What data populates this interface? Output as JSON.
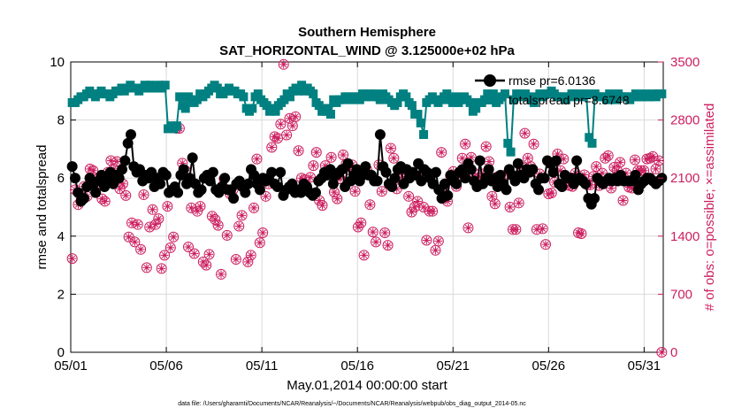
{
  "chart_data": {
    "type": "line",
    "title": [
      "Southern Hemisphere",
      "SAT_HORIZONTAL_WIND @ 3.125000e+02 hPa"
    ],
    "xlabel": "May.01,2014 00:00:00 start",
    "ylabel": "rmse and totalspread",
    "y2label": "# of obs: o=possible; ×=assimilated",
    "footnote": "data file: /Users/gharamti/Documents/NCAR/Reanalysis/~/Documents/NCAR/Reanalysis/webpub/obs_diag_output_2014-05.nc",
    "x_ticks": [
      "05/01",
      "05/06",
      "05/11",
      "05/16",
      "05/21",
      "05/26",
      "05/31"
    ],
    "xlim_days": [
      1,
      32
    ],
    "ylim": [
      0,
      10
    ],
    "y_ticks": [
      "0",
      "2",
      "4",
      "6",
      "8",
      "10"
    ],
    "y2lim": [
      0,
      3500
    ],
    "y2_ticks": [
      "0",
      "700",
      "1400",
      "2100",
      "2800",
      "3500"
    ],
    "grid": true,
    "legend_position": "top-right",
    "colors": {
      "rmse": "#000000",
      "totalspread": "#008080",
      "obs": "#cc1f5f"
    },
    "series": [
      {
        "name": "rmse pr=6.0136",
        "axis": "left",
        "marker": "circle",
        "values": [
          6.4,
          6.0,
          5.5,
          5.2,
          5.3,
          5.7,
          6.0,
          5.8,
          5.5,
          5.9,
          6.1,
          5.7,
          6.0,
          6.2,
          5.8,
          6.1,
          6.0,
          6.3,
          6.6,
          7.2,
          7.5,
          6.4,
          6.2,
          6.3,
          5.9,
          6.1,
          6.0,
          6.2,
          5.7,
          6.0,
          5.8,
          6.2,
          6.1,
          5.5,
          5.6,
          5.7,
          5.5,
          6.1,
          6.3,
          5.8,
          6.0,
          6.7,
          5.8,
          5.5,
          5.6,
          6.0,
          6.1,
          5.9,
          6.2,
          5.6,
          5.5,
          5.7,
          6.0,
          5.6,
          5.6,
          5.3,
          5.8,
          5.9,
          5.7,
          5.5,
          5.8,
          6.3,
          6.1,
          5.8,
          5.6,
          6.0,
          5.9,
          6.0,
          6.2,
          5.8,
          5.7,
          6.2,
          5.4,
          5.6,
          5.7,
          5.8,
          5.5,
          5.6,
          5.5,
          5.8,
          5.7,
          5.5,
          5.4,
          5.5,
          5.9,
          6.0,
          6.2,
          6.1,
          6.3,
          5.8,
          6.1,
          6.2,
          6.3,
          5.7,
          6.5,
          5.9,
          6.1,
          6.3,
          5.9,
          6.1,
          6.4,
          6.1,
          6.1,
          5.9,
          5.9,
          7.5,
          6.4,
          6.2,
          5.8,
          5.7,
          6.0,
          6.3,
          6.4,
          5.8,
          6.3,
          6.0,
          6.2,
          6.1,
          6.5,
          5.9,
          6.3,
          6.2,
          6.0,
          5.8,
          6.2,
          5.6,
          5.3,
          5.8,
          5.4,
          6.1,
          5.9,
          5.8,
          6.2,
          6.3,
          6.0,
          6.5,
          6.3,
          5.9,
          5.7,
          6.6,
          5.8,
          6.0,
          6.3,
          5.9,
          6.0,
          5.7,
          6.1,
          5.8,
          5.6,
          6.3,
          6.1,
          5.9,
          6.5,
          6.1,
          6.0,
          6.3,
          6.2,
          6.3,
          5.8,
          5.6,
          6.0,
          6.0,
          6.6,
          6.5,
          6.2,
          6.6,
          5.8,
          5.7,
          6.1,
          6.0,
          6.0,
          5.8,
          6.6,
          6.0,
          5.9,
          5.8,
          5.3,
          5.1,
          5.3,
          6.0,
          5.9,
          5.8,
          5.9,
          6.0,
          5.9,
          6.0,
          5.9,
          6.1,
          5.9,
          5.9,
          5.9,
          5.9,
          6.1,
          5.6,
          5.8,
          5.9,
          6.0,
          6.0,
          5.9,
          5.8,
          5.9,
          6.0
        ]
      },
      {
        "name": "totalspread pr=8.6748",
        "axis": "left",
        "marker": "square",
        "values": [
          8.6,
          8.6,
          8.7,
          8.8,
          8.8,
          8.9,
          9.0,
          8.9,
          8.8,
          8.9,
          9.0,
          8.9,
          8.9,
          8.8,
          8.9,
          9.0,
          9.0,
          9.1,
          9.0,
          9.1,
          9.2,
          9.1,
          9.1,
          9.0,
          9.1,
          9.2,
          9.1,
          9.2,
          9.1,
          9.1,
          9.2,
          9.1,
          9.2,
          7.7,
          7.8,
          7.7,
          7.8,
          8.8,
          8.5,
          8.4,
          8.8,
          8.7,
          8.6,
          8.7,
          8.9,
          8.8,
          8.9,
          9.0,
          9.1,
          9.2,
          9.1,
          8.9,
          8.9,
          9.0,
          9.1,
          9.0,
          9.0,
          8.9,
          8.9,
          8.8,
          8.4,
          8.3,
          8.4,
          8.8,
          8.9,
          8.7,
          8.6,
          8.5,
          8.3,
          8.4,
          8.3,
          8.5,
          8.6,
          8.7,
          8.9,
          8.8,
          9.0,
          9.1,
          9.0,
          9.2,
          9.0,
          9.1,
          9.0,
          8.9,
          8.6,
          8.5,
          8.3,
          8.3,
          8.4,
          8.2,
          8.7,
          8.6,
          8.7,
          8.7,
          8.8,
          8.8,
          8.7,
          8.8,
          8.8,
          8.7,
          8.9,
          8.8,
          8.9,
          8.8,
          8.9,
          8.8,
          8.7,
          8.9,
          8.8,
          8.7,
          8.6,
          8.5,
          8.6,
          8.8,
          8.9,
          8.8,
          8.6,
          8.5,
          8.2,
          8.2,
          7.9,
          7.5,
          8.6,
          8.7,
          8.8,
          8.7,
          8.6,
          8.7,
          8.8,
          8.9,
          8.7,
          8.6,
          8.8,
          8.6,
          8.7,
          8.8,
          8.7,
          8.6,
          8.3,
          8.4,
          8.6,
          8.6,
          8.7,
          8.9,
          8.8,
          8.9,
          8.6,
          8.7,
          8.8,
          8.9,
          7.2,
          6.9,
          8.7,
          8.9,
          8.9,
          8.8,
          8.9,
          8.8,
          8.7,
          8.6,
          8.8,
          8.9,
          8.8,
          8.9,
          8.9,
          9.0,
          8.9,
          8.8,
          8.8,
          8.8,
          8.7,
          8.8,
          8.9,
          8.9,
          8.8,
          8.9,
          8.8,
          8.9,
          7.4,
          7.2,
          8.9,
          8.8,
          8.8,
          8.8,
          8.7,
          8.9,
          8.8,
          8.7,
          8.9,
          8.8,
          8.8,
          8.8,
          8.7,
          8.8,
          8.9,
          8.8,
          8.8,
          8.9,
          8.8,
          8.8,
          8.9,
          8.8,
          8.9,
          8.9
        ]
      },
      {
        "name": "",
        "axis": "right",
        "marker": "circle-open",
        "values": [
          1130,
          1960,
          1780,
          1850,
          2000,
          1880,
          2210,
          2190,
          2100,
          2040,
          1850,
          1820,
          2170,
          2310,
          2210,
          2300,
          1970,
          2030,
          1890,
          1390,
          1560,
          1330,
          1540,
          1240,
          1900,
          1020,
          1510,
          1720,
          1540,
          1610,
          1010,
          1170,
          1760,
          1260,
          1390,
          2700,
          2700,
          2280,
          2190,
          1270,
          1740,
          1190,
          1700,
          1760,
          1090,
          1050,
          1180,
          1640,
          1600,
          1530,
          940,
          2090,
          1410,
          1910,
          1960,
          1120,
          1520,
          1650,
          2020,
          1090,
          1170,
          1740,
          2330,
          1320,
          1440,
          1880,
          2030,
          2470,
          2600,
          2580,
          2750,
          3470,
          2620,
          2820,
          2730,
          2840,
          2430,
          2100,
          2080,
          1950,
          2110,
          2250,
          2410,
          1830,
          1770,
          2250,
          2180,
          2350,
          1930,
          1850,
          2090,
          2380,
          2270,
          2200,
          2260,
          1940,
          1510,
          1560,
          1170,
          2200,
          1780,
          1450,
          1330,
          2260,
          1940,
          1440,
          1290,
          2460,
          2340,
          1970,
          2200,
          2060,
          2120,
          1880,
          1690,
          1750,
          1820,
          2130,
          1750,
          1350,
          1700,
          1700,
          1230,
          1340,
          2410,
          1920,
          1820,
          2130,
          2180,
          2000,
          2150,
          2340,
          2510,
          1500,
          2350,
          2160,
          2080,
          2110,
          2150,
          2480,
          2300,
          1880,
          1790,
          2120,
          2070,
          2000,
          2150,
          1750,
          1480,
          1480,
          1800,
          2230,
          2640,
          2340,
          2240,
          2510,
          1480,
          2150,
          1490,
          1300,
          1910,
          1920,
          2050,
          2390,
          2190,
          2330,
          2060,
          2010,
          2000,
          2160,
          1440,
          1430,
          2140,
          2020,
          2020,
          2120,
          2240,
          2010,
          2160,
          2340,
          2370,
          1980,
          2230,
          2190,
          2290,
          1830,
          2160,
          1990,
          1980,
          2320,
          2190,
          2190,
          2190,
          2330,
          2340,
          2360,
          2210,
          2310,
          0
        ]
      },
      {
        "name": "",
        "axis": "right",
        "marker": "asterisk",
        "values": [
          1130,
          1960,
          1780,
          1850,
          2000,
          1880,
          2210,
          2190,
          2100,
          2040,
          1850,
          1820,
          2170,
          2310,
          2210,
          2300,
          1970,
          2030,
          1890,
          1390,
          1560,
          1330,
          1540,
          1240,
          1900,
          1020,
          1510,
          1720,
          1540,
          1610,
          1010,
          1170,
          1760,
          1260,
          1390,
          2700,
          2700,
          2280,
          2190,
          1270,
          1740,
          1190,
          1700,
          1760,
          1090,
          1050,
          1180,
          1640,
          1600,
          1530,
          940,
          2090,
          1410,
          1910,
          1960,
          1120,
          1520,
          1650,
          2020,
          1090,
          1170,
          1740,
          2330,
          1320,
          1440,
          1880,
          2030,
          2470,
          2600,
          2580,
          2750,
          3470,
          2620,
          2820,
          2730,
          2840,
          2430,
          2100,
          2080,
          1950,
          2110,
          2250,
          2410,
          1830,
          1770,
          2250,
          2180,
          2350,
          1930,
          1850,
          2090,
          2380,
          2270,
          2200,
          2260,
          1940,
          1510,
          1560,
          1170,
          2200,
          1780,
          1450,
          1330,
          2260,
          1940,
          1440,
          1290,
          2460,
          2340,
          1970,
          2200,
          2060,
          2120,
          1880,
          1690,
          1750,
          1820,
          2130,
          1750,
          1350,
          1700,
          1700,
          1230,
          1340,
          2410,
          1920,
          1820,
          2130,
          2180,
          2000,
          2150,
          2340,
          2510,
          1500,
          2350,
          2160,
          2080,
          2110,
          2150,
          2480,
          2300,
          1880,
          1790,
          2120,
          2070,
          2000,
          2150,
          1750,
          1480,
          1480,
          1800,
          2230,
          2640,
          2340,
          2240,
          2510,
          1480,
          2150,
          1490,
          1300,
          1910,
          1920,
          2050,
          2390,
          2190,
          2330,
          2060,
          2010,
          2000,
          2160,
          1440,
          1430,
          2140,
          2020,
          2020,
          2120,
          2240,
          2010,
          2160,
          2340,
          2370,
          1980,
          2230,
          2190,
          2290,
          1830,
          2160,
          1990,
          1980,
          2320,
          2190,
          2190,
          2190,
          2330,
          2340,
          2360,
          2210,
          2310,
          0
        ]
      }
    ]
  }
}
